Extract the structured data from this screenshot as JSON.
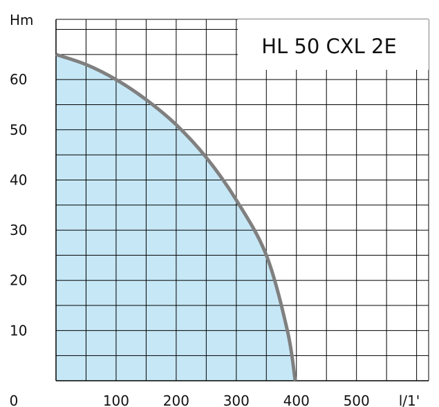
{
  "chart_data": {
    "type": "area",
    "title": "HL 50 CXL 2E",
    "xlabel": "l/1'",
    "ylabel": "Hm",
    "xlim": [
      0,
      620
    ],
    "ylim": [
      0,
      72
    ],
    "x_ticks": [
      "0",
      "100",
      "200",
      "300",
      "400",
      "500"
    ],
    "y_ticks": [
      "10",
      "20",
      "30",
      "40",
      "50",
      "60"
    ],
    "grid": true,
    "series": [
      {
        "x": [
          0,
          50,
          100,
          150,
          200,
          250,
          300,
          350,
          385,
          398
        ],
        "y": [
          65,
          63,
          60,
          56,
          51,
          44.5,
          36,
          25,
          10,
          0
        ]
      }
    ],
    "colors": {
      "fill": "#c6e7f6",
      "line": "#808080",
      "grid": "#000000",
      "axis": "#000000"
    }
  }
}
